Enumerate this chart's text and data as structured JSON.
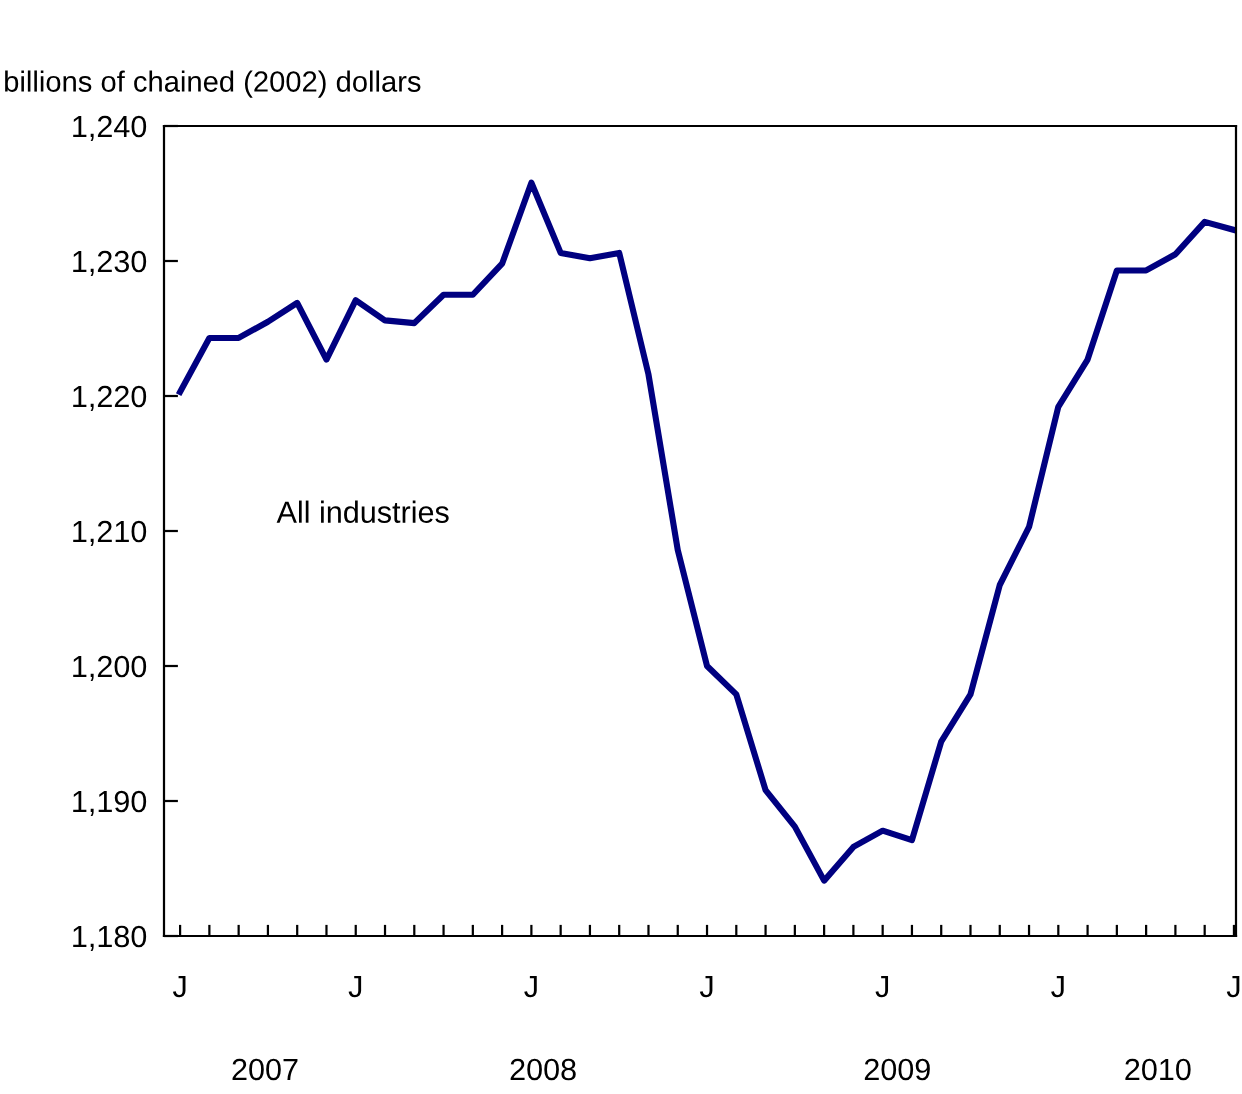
{
  "chart_data": {
    "type": "line",
    "ylabel": "billions of chained (2002) dollars",
    "annotations": [
      "All industries",
      "2007",
      "2008",
      "2009",
      "2010"
    ],
    "categories": [
      "J",
      null,
      null,
      null,
      null,
      null,
      "J",
      null,
      null,
      null,
      null,
      null,
      "J",
      null,
      null,
      null,
      null,
      null,
      "J",
      null,
      null,
      null,
      null,
      null,
      "J",
      null,
      null,
      null,
      null,
      null,
      "J",
      null,
      null,
      null,
      null,
      null,
      "J"
    ],
    "series": [
      {
        "color": "#000080",
        "values": [
          1220.3,
          1224.3,
          1224.3,
          1225.5,
          1226.9,
          1222.7,
          1227.1,
          1225.6,
          1225.4,
          1227.5,
          1227.5,
          1229.8,
          1235.8,
          1230.6,
          1230.2,
          1230.6,
          1221.6,
          1208.6,
          1200.0,
          1197.9,
          1190.8,
          1188.1,
          1184.1,
          1186.6,
          1187.8,
          1187.1,
          1194.4,
          1197.9,
          1206.0,
          1210.3,
          1219.2,
          1222.7,
          1229.3,
          1229.3,
          1230.5,
          1232.9,
          1232.3
        ]
      }
    ],
    "ylim": [
      1180,
      1240
    ],
    "yticks": [
      {
        "value": 1180,
        "label": "1,180"
      },
      {
        "value": 1190,
        "label": "1,190"
      },
      {
        "value": 1200,
        "label": "1,200"
      },
      {
        "value": 1210,
        "label": "1,210"
      },
      {
        "value": 1220,
        "label": "1,220"
      },
      {
        "value": 1230,
        "label": "1,230"
      },
      {
        "value": 1240,
        "label": "1,240"
      }
    ],
    "grid": false,
    "legend": false,
    "line_style": "solid",
    "marker": "none"
  }
}
